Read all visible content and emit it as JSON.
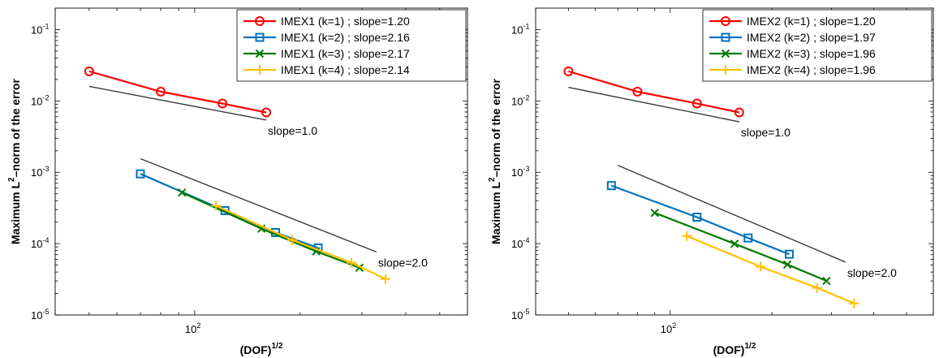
{
  "xlabel": {
    "base": "(DOF)",
    "exp": "1/2"
  },
  "ylabel": {
    "prefix": "Maximum L",
    "exp": "2",
    "suffix": "–norm of the error"
  },
  "colors": {
    "k1": "#ff0000",
    "k2": "#0072bd",
    "k3": "#007a00",
    "k4": "#ffc000"
  },
  "chart_data": [
    {
      "type": "line",
      "xscale": "log",
      "yscale": "log",
      "xlim": [
        40,
        600
      ],
      "ylim": [
        1e-05,
        0.2
      ],
      "x_tick_labels": [
        "10^2"
      ],
      "y_tick_labels": [
        "10^-5",
        "10^-4",
        "10^-3",
        "10^-2",
        "10^-1"
      ],
      "legend_position": "top-right",
      "series": [
        {
          "name": "IMEX1 (k=1) ; slope=1.20",
          "color": "#ff0000",
          "marker": "circle",
          "x": [
            50,
            80,
            120,
            160
          ],
          "y": [
            0.026,
            0.0135,
            0.0092,
            0.0069
          ]
        },
        {
          "name": "IMEX1 (k=2) ; slope=2.16",
          "color": "#0072bd",
          "marker": "square",
          "x": [
            70,
            122,
            170,
            225
          ],
          "y": [
            0.00095,
            0.00029,
            0.000143,
            8.7e-05
          ]
        },
        {
          "name": "IMEX1 (k=3) ; slope=2.17",
          "color": "#007a00",
          "marker": "x",
          "x": [
            92,
            155,
            222,
            295
          ],
          "y": [
            0.00052,
            0.000162,
            7.8e-05,
            4.6e-05
          ]
        },
        {
          "name": "IMEX1 (k=4) ; slope=2.14",
          "color": "#ffc000",
          "marker": "plus",
          "x": [
            115,
            190,
            280,
            350
          ],
          "y": [
            0.00034,
            0.000112,
            5.4e-05,
            3.2e-05
          ]
        }
      ],
      "reference_lines": [
        {
          "label": "slope=1.0",
          "x": [
            50,
            160
          ],
          "y": [
            0.016,
            0.0054
          ]
        },
        {
          "label": "slope=2.0",
          "x": [
            70,
            330
          ],
          "y": [
            0.00155,
            7.65e-05
          ]
        }
      ]
    },
    {
      "type": "line",
      "xscale": "log",
      "yscale": "log",
      "xlim": [
        40,
        600
      ],
      "ylim": [
        1e-05,
        0.2
      ],
      "x_tick_labels": [
        "10^2"
      ],
      "y_tick_labels": [
        "10^-5",
        "10^-4",
        "10^-3",
        "10^-2",
        "10^-1"
      ],
      "legend_position": "top-right",
      "series": [
        {
          "name": "IMEX2 (k=1) ; slope=1.20",
          "color": "#ff0000",
          "marker": "circle",
          "x": [
            50,
            80,
            120,
            160
          ],
          "y": [
            0.026,
            0.0135,
            0.0092,
            0.0069
          ]
        },
        {
          "name": "IMEX2 (k=2) ; slope=1.97",
          "color": "#0072bd",
          "marker": "square",
          "x": [
            67,
            120,
            170,
            225
          ],
          "y": [
            0.00065,
            0.000235,
            0.00012,
            7.1e-05
          ]
        },
        {
          "name": "IMEX2 (k=3) ; slope=1.96",
          "color": "#007a00",
          "marker": "x",
          "x": [
            90,
            155,
            222,
            290
          ],
          "y": [
            0.00027,
            9.95e-05,
            5.1e-05,
            3e-05
          ]
        },
        {
          "name": "IMEX2 (k=4) ; slope=1.96",
          "color": "#ffc000",
          "marker": "plus",
          "x": [
            112,
            185,
            272,
            350
          ],
          "y": [
            0.000128,
            4.75e-05,
            2.4e-05,
            1.45e-05
          ]
        }
      ],
      "reference_lines": [
        {
          "label": "slope=1.0",
          "x": [
            50,
            160
          ],
          "y": [
            0.0155,
            0.0051
          ]
        },
        {
          "label": "slope=2.0",
          "x": [
            70,
            330
          ],
          "y": [
            0.00125,
            5.5e-05
          ]
        }
      ]
    }
  ]
}
